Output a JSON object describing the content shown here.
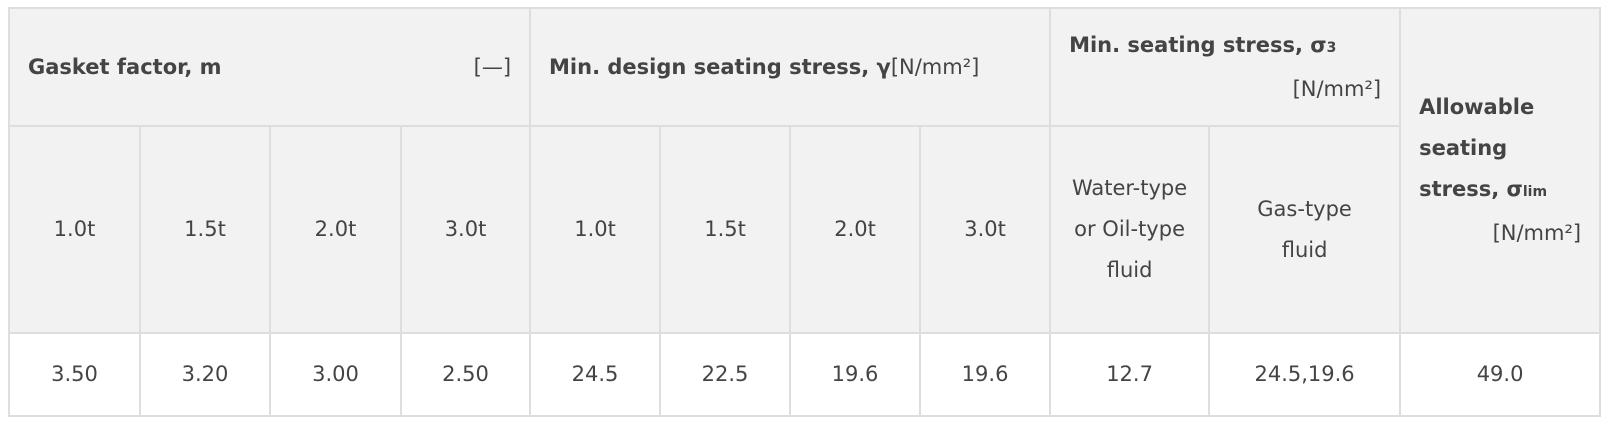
{
  "headers": {
    "gasket_factor": {
      "label": "Gasket factor, m",
      "unit": "[—]"
    },
    "design_seating_stress": {
      "label": "Min. design seating stress, γ",
      "unit": "[N/mm²]"
    },
    "min_seating_stress": {
      "label": "Min. seating stress, σ",
      "sub": "3",
      "unit": "[N/mm²]"
    },
    "allowable_seating_stress": {
      "label": "Allowable seating stress, σ",
      "sub": "lim",
      "unit": "[N/mm²]"
    }
  },
  "sub_headers": {
    "gasket_factor": [
      "1.0t",
      "1.5t",
      "2.0t",
      "3.0t"
    ],
    "design_seating_stress": [
      "1.0t",
      "1.5t",
      "2.0t",
      "3.0t"
    ],
    "min_seating_stress": [
      "Water-type or Oil-type fluid",
      "Gas-type fluid"
    ]
  },
  "row": [
    "3.50",
    "3.20",
    "3.00",
    "2.50",
    "24.5",
    "22.5",
    "19.6",
    "19.6",
    "12.7",
    "24.5,19.6",
    "49.0"
  ]
}
